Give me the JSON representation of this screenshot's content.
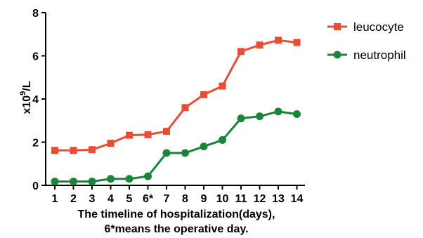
{
  "chart_data": {
    "type": "line",
    "title": "",
    "x": [
      "1",
      "2",
      "3",
      "4",
      "5",
      "6*",
      "7",
      "8",
      "9",
      "10",
      "11",
      "12",
      "13",
      "14"
    ],
    "xlabel_lines": [
      "The timeline of hospitalization(days),",
      "6*means the operative day."
    ],
    "ylabel": "x10",
    "ylabel_sup": "9",
    "ylabel_suffix": "/L",
    "ylim": [
      0,
      8
    ],
    "yticks": [
      "0",
      "2",
      "4",
      "6",
      "8"
    ],
    "grid": false,
    "legend_position": "right",
    "series": [
      {
        "name": "leucocyte",
        "marker": "square",
        "color": "#ee4b35",
        "values": [
          1.62,
          1.62,
          1.65,
          1.95,
          2.32,
          2.35,
          2.5,
          3.6,
          4.2,
          4.6,
          6.2,
          6.5,
          6.72,
          6.62
        ]
      },
      {
        "name": "neutrophil",
        "marker": "circle",
        "color": "#19853a",
        "values": [
          0.18,
          0.18,
          0.18,
          0.3,
          0.3,
          0.42,
          1.5,
          1.5,
          1.8,
          2.1,
          3.1,
          3.2,
          3.42,
          3.3
        ]
      }
    ]
  }
}
